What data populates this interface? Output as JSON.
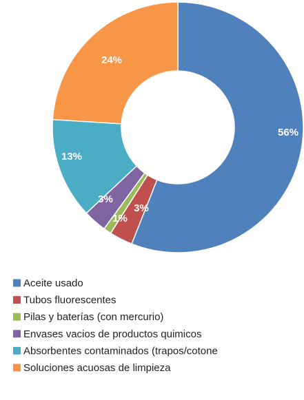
{
  "chart_data": {
    "type": "donut",
    "categories": [
      "Aceite usado",
      "Tubos fluorescentes",
      "Pilas y baterías (con mercurio)",
      "Envases vacios de productos quimicos",
      "Absorbentes contaminados (trapos/cotone",
      "Soluciones acuosas de limpieza"
    ],
    "values": [
      56,
      3,
      1,
      3,
      13,
      24
    ],
    "value_labels": [
      "56%",
      "3%",
      "1%",
      "3%",
      "13%",
      "24%"
    ],
    "colors": [
      "#4f81bd",
      "#c0504d",
      "#9bbb59",
      "#8064a2",
      "#4bacc6",
      "#f79646"
    ],
    "legend": "bottom"
  }
}
